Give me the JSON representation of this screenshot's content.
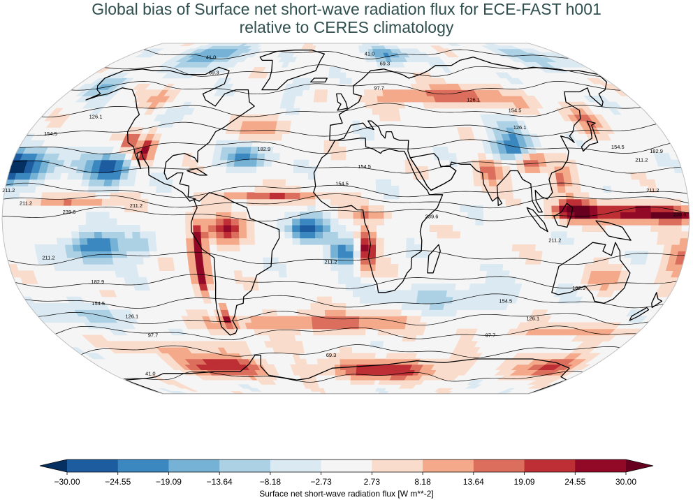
{
  "chart_data": {
    "type": "heatmap",
    "title_line1": "Global bias of Surface net short-wave radiation flux for ECE-FAST h001",
    "title_line2": "relative to CERES climatology",
    "colorbar": {
      "label": "Surface net short-wave radiation flux [W m**-2]",
      "ticks": [
        "−30.00",
        "−24.55",
        "−19.09",
        "−13.64",
        "−8.18",
        "−2.73",
        "2.73",
        "8.18",
        "13.64",
        "19.09",
        "24.55",
        "30.00"
      ],
      "range": [
        -30.0,
        30.0
      ],
      "extend": "both",
      "colors": [
        "#053061",
        "#1c5c9f",
        "#3b87c0",
        "#76b2d5",
        "#acd1e5",
        "#dbe9f2",
        "#f5f5f5",
        "#fadccc",
        "#f4a98a",
        "#db6e5c",
        "#bd2f35",
        "#920827",
        "#67001f"
      ]
    },
    "contour_levels": [
      "41.0",
      "69.3",
      "97.7",
      "126.1",
      "154.5",
      "182.9",
      "211.2",
      "239.6"
    ],
    "contour_labels": [
      {
        "text": "41.0",
        "lon": -110,
        "lat": 78
      },
      {
        "text": "41.0",
        "lon": 20,
        "lat": 80
      },
      {
        "text": "69.3",
        "lon": -95,
        "lat": 69
      },
      {
        "text": "69.3",
        "lon": 30,
        "lat": 74
      },
      {
        "text": "97.7",
        "lon": 22,
        "lat": 61
      },
      {
        "text": "126.1",
        "lon": -148,
        "lat": 47
      },
      {
        "text": "126.1",
        "lon": 80,
        "lat": 55
      },
      {
        "text": "126.1",
        "lon": 100,
        "lat": 42
      },
      {
        "text": "154.5",
        "lon": -167,
        "lat": 39
      },
      {
        "text": "154.5",
        "lon": 102,
        "lat": 50
      },
      {
        "text": "154.5",
        "lon": 150,
        "lat": 33
      },
      {
        "text": "154.5",
        "lon": 10,
        "lat": 24
      },
      {
        "text": "154.5",
        "lon": -2,
        "lat": 16
      },
      {
        "text": "182.9",
        "lon": -45,
        "lat": 32
      },
      {
        "text": "182.9",
        "lon": 170,
        "lat": 31
      },
      {
        "text": "211.2",
        "lon": 160,
        "lat": 27
      },
      {
        "text": "211.2",
        "lon": -178,
        "lat": 13
      },
      {
        "text": "211.2",
        "lon": -168,
        "lat": 7
      },
      {
        "text": "211.2",
        "lon": -110,
        "lat": 6
      },
      {
        "text": "211.2",
        "lon": 162,
        "lat": 13
      },
      {
        "text": "211.2",
        "lon": 110,
        "lat": -10
      },
      {
        "text": "211.2",
        "lon": -158,
        "lat": -18
      },
      {
        "text": "211.2",
        "lon": -8,
        "lat": -20
      },
      {
        "text": "239.6",
        "lon": -145,
        "lat": 3
      },
      {
        "text": "239.6",
        "lon": 45,
        "lat": 1
      },
      {
        "text": "239.6",
        "lon": 175,
        "lat": 2
      },
      {
        "text": "182.9",
        "lon": -135,
        "lat": -29
      },
      {
        "text": "182.9",
        "lon": 128,
        "lat": -32
      },
      {
        "text": "154.5",
        "lon": -140,
        "lat": -39
      },
      {
        "text": "154.5",
        "lon": 90,
        "lat": -38
      },
      {
        "text": "126.1",
        "lon": -125,
        "lat": -45
      },
      {
        "text": "126.1",
        "lon": 110,
        "lat": -46
      },
      {
        "text": "97.7",
        "lon": -120,
        "lat": -54
      },
      {
        "text": "97.7",
        "lon": 90,
        "lat": -54
      },
      {
        "text": "69.3",
        "lon": -10,
        "lat": -64
      },
      {
        "text": "41.0",
        "lon": -150,
        "lat": -74
      }
    ]
  }
}
